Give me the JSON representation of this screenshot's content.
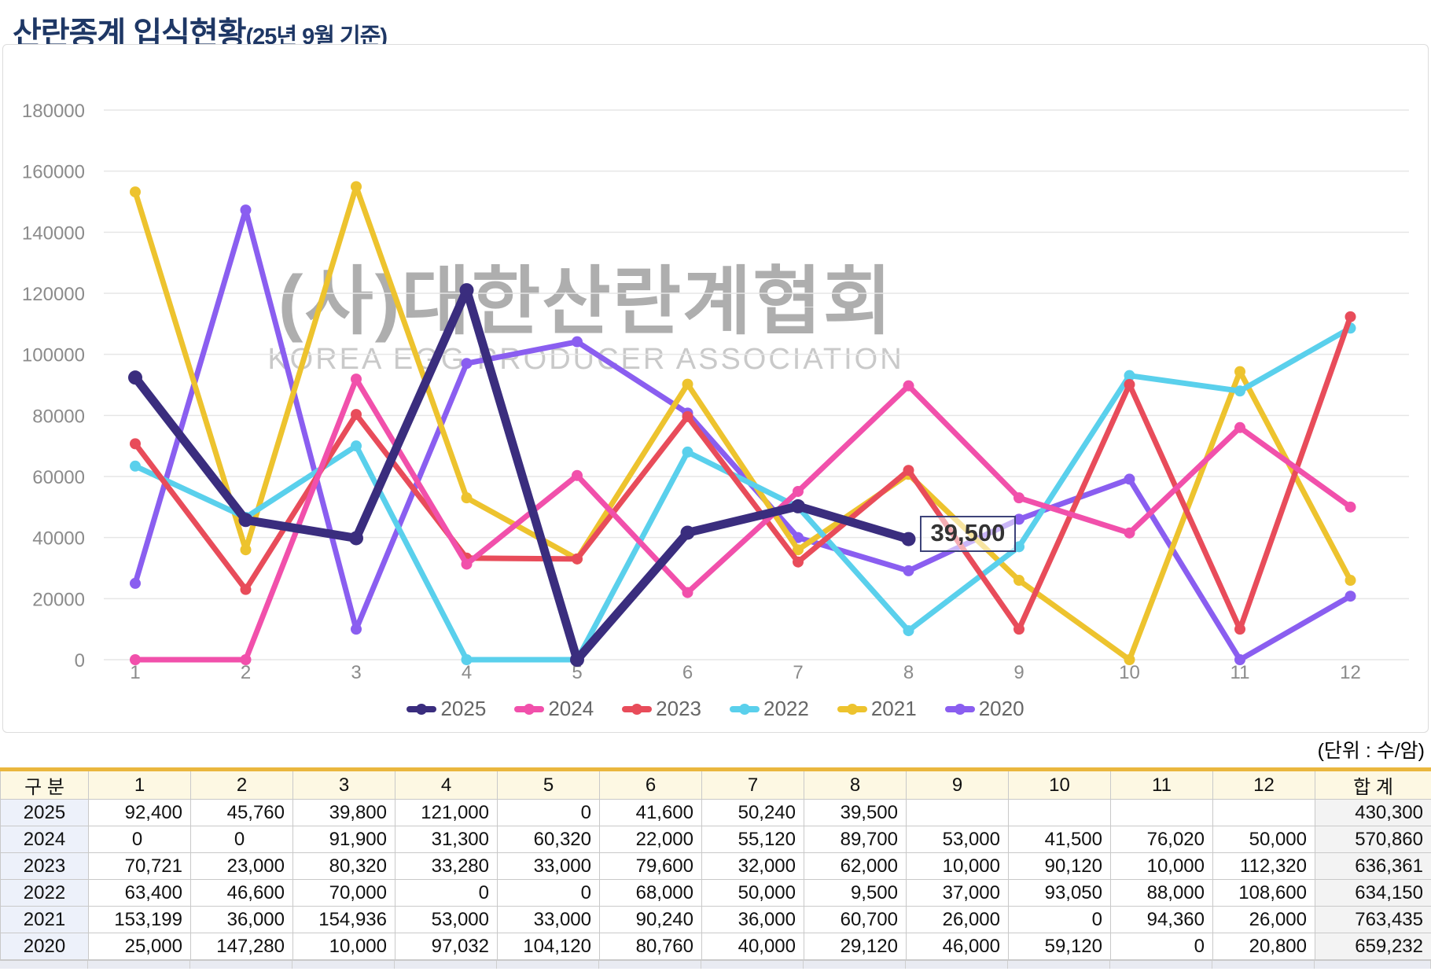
{
  "title": {
    "main": "산란종계 입식현황",
    "suffix": "(25년 9월 기준)"
  },
  "watermark": {
    "line1": "(사)대한산란계협회",
    "line2": "KOREA EGG PRODUCER ASSOCIATION"
  },
  "unit_label": "(단위 : 수/암)",
  "chart_data": {
    "type": "line",
    "x": [
      "1",
      "2",
      "3",
      "4",
      "5",
      "6",
      "7",
      "8",
      "9",
      "10",
      "11",
      "12"
    ],
    "ylim": [
      0,
      180000
    ],
    "ytick_step": 20000,
    "grid": true,
    "legend_position": "bottom",
    "series": [
      {
        "name": "2025",
        "color": "#3a2d7e",
        "values": [
          92400,
          45760,
          39800,
          121000,
          0,
          41600,
          50240,
          39500
        ]
      },
      {
        "name": "2024",
        "color": "#f150ab",
        "values": [
          0,
          0,
          91900,
          31300,
          60320,
          22000,
          55120,
          89700,
          53000,
          41500,
          76020,
          50000
        ]
      },
      {
        "name": "2023",
        "color": "#e84c5a",
        "values": [
          70721,
          23000,
          80320,
          33280,
          33000,
          79600,
          32000,
          62000,
          10000,
          90120,
          10000,
          112320
        ]
      },
      {
        "name": "2022",
        "color": "#5ad0ec",
        "values": [
          63400,
          46600,
          70000,
          0,
          0,
          68000,
          50000,
          9500,
          37000,
          93050,
          88000,
          108600
        ]
      },
      {
        "name": "2021",
        "color": "#edc32e",
        "values": [
          153199,
          36000,
          154936,
          53000,
          33000,
          90240,
          36000,
          60700,
          26000,
          0,
          94360,
          26000
        ]
      },
      {
        "name": "2020",
        "color": "#8a5ef0",
        "values": [
          25000,
          147280,
          10000,
          97032,
          104120,
          80760,
          40000,
          29120,
          46000,
          59120,
          0,
          20800
        ]
      }
    ],
    "annotation": {
      "text": "39,500",
      "series": "2025",
      "month": 8
    }
  },
  "table": {
    "accent_color": "#eab73e",
    "header": [
      "구 분",
      "1",
      "2",
      "3",
      "4",
      "5",
      "6",
      "7",
      "8",
      "9",
      "10",
      "11",
      "12",
      "합 계"
    ],
    "rows": [
      {
        "label": "2025",
        "cells": [
          "92,400",
          "45,760",
          "39,800",
          "121,000",
          "0",
          "41,600",
          "50,240",
          "39,500",
          "",
          "",
          "",
          "",
          "430,300"
        ]
      },
      {
        "label": "2024",
        "center_cols": [
          0,
          1
        ],
        "cells": [
          "0",
          "0",
          "91,900",
          "31,300",
          "60,320",
          "22,000",
          "55,120",
          "89,700",
          "53,000",
          "41,500",
          "76,020",
          "50,000",
          "570,860"
        ]
      },
      {
        "label": "2023",
        "cells": [
          "70,721",
          "23,000",
          "80,320",
          "33,280",
          "33,000",
          "79,600",
          "32,000",
          "62,000",
          "10,000",
          "90,120",
          "10,000",
          "112,320",
          "636,361"
        ]
      },
      {
        "label": "2022",
        "cells": [
          "63,400",
          "46,600",
          "70,000",
          "0",
          "0",
          "68,000",
          "50,000",
          "9,500",
          "37,000",
          "93,050",
          "88,000",
          "108,600",
          "634,150"
        ]
      },
      {
        "label": "2021",
        "cells": [
          "153,199",
          "36,000",
          "154,936",
          "53,000",
          "33,000",
          "90,240",
          "36,000",
          "60,700",
          "26,000",
          "0",
          "94,360",
          "26,000",
          "763,435"
        ]
      },
      {
        "label": "2020",
        "cells": [
          "25,000",
          "147,280",
          "10,000",
          "97,032",
          "104,120",
          "80,760",
          "40,000",
          "29,120",
          "46,000",
          "59,120",
          "0",
          "20,800",
          "659,232"
        ]
      }
    ]
  }
}
